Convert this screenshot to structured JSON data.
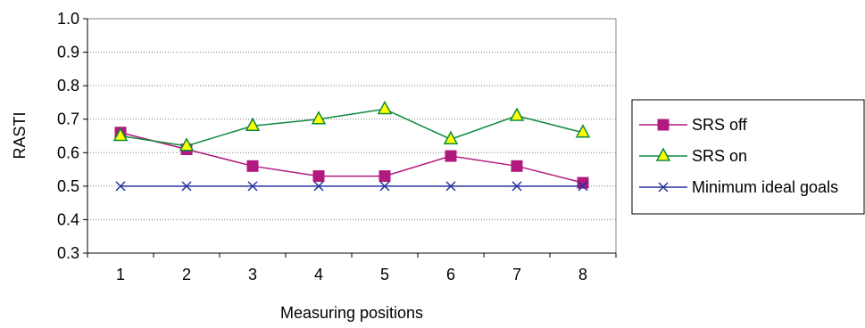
{
  "chart_data": {
    "type": "line",
    "title": "",
    "xlabel": "Measuring positions",
    "ylabel": "RASTI",
    "categories": [
      "1",
      "2",
      "3",
      "4",
      "5",
      "6",
      "7",
      "8"
    ],
    "ylim": [
      0.3,
      1.0
    ],
    "yticks": [
      "0.3",
      "0.4",
      "0.5",
      "0.6",
      "0.7",
      "0.8",
      "0.9",
      "1.0"
    ],
    "grid": "horizontal dotted",
    "legend_position": "right",
    "series": [
      {
        "name": "SRS off",
        "color": "#b0197e",
        "marker": "square",
        "values": [
          0.66,
          0.61,
          0.56,
          0.53,
          0.53,
          0.59,
          0.56,
          0.51
        ]
      },
      {
        "name": "SRS on",
        "color": "#0e8a3e",
        "marker": "triangle",
        "marker_fill": "#ffff00",
        "values": [
          0.65,
          0.62,
          0.68,
          0.7,
          0.73,
          0.64,
          0.71,
          0.66
        ]
      },
      {
        "name": "Minimum ideal goals",
        "color": "#27339b",
        "marker": "x",
        "values": [
          0.5,
          0.5,
          0.5,
          0.5,
          0.5,
          0.5,
          0.5,
          0.5
        ]
      }
    ]
  }
}
